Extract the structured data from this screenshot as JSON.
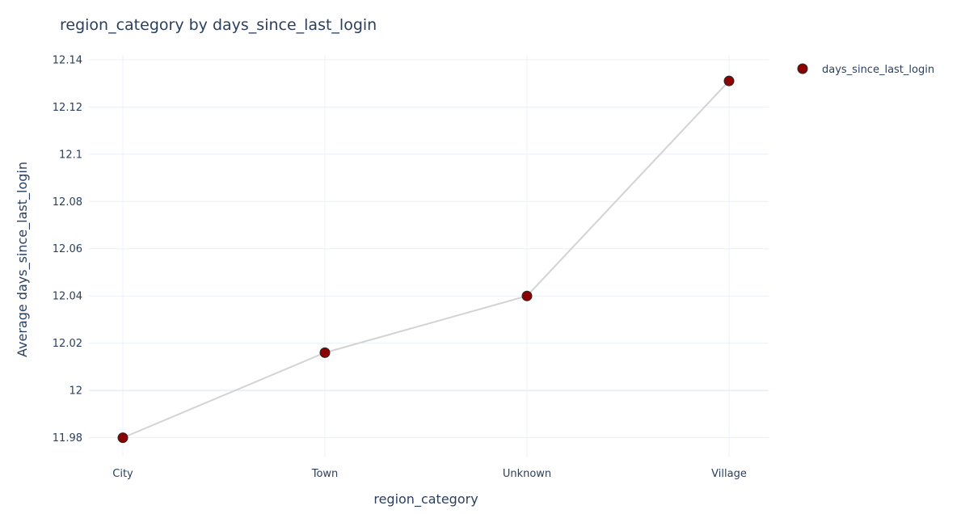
{
  "chart_data": {
    "type": "line",
    "title": "region_category by days_since_last_login",
    "xlabel": "region_category",
    "ylabel": "Average days_since_last_login",
    "categories": [
      "City",
      "Town",
      "Unknown",
      "Village"
    ],
    "series": [
      {
        "name": "days_since_last_login",
        "values": [
          11.98,
          12.016,
          12.04,
          12.131
        ]
      }
    ],
    "ylim": [
      11.972,
      12.142
    ],
    "yticks": [
      11.98,
      12,
      12.02,
      12.04,
      12.06,
      12.08,
      12.1,
      12.12,
      12.14
    ],
    "ytick_labels": [
      "11.98",
      "12",
      "12.02",
      "12.04",
      "12.06",
      "12.08",
      "12.1",
      "12.12",
      "12.14"
    ],
    "grid": true,
    "legend_position": "top-right",
    "colors": {
      "marker_fill": "#8b0000",
      "marker_edge": "#2a2a2a",
      "line": "#d3d3d3",
      "grid": "#ebf0f8",
      "text": "#2a3f5f"
    }
  }
}
